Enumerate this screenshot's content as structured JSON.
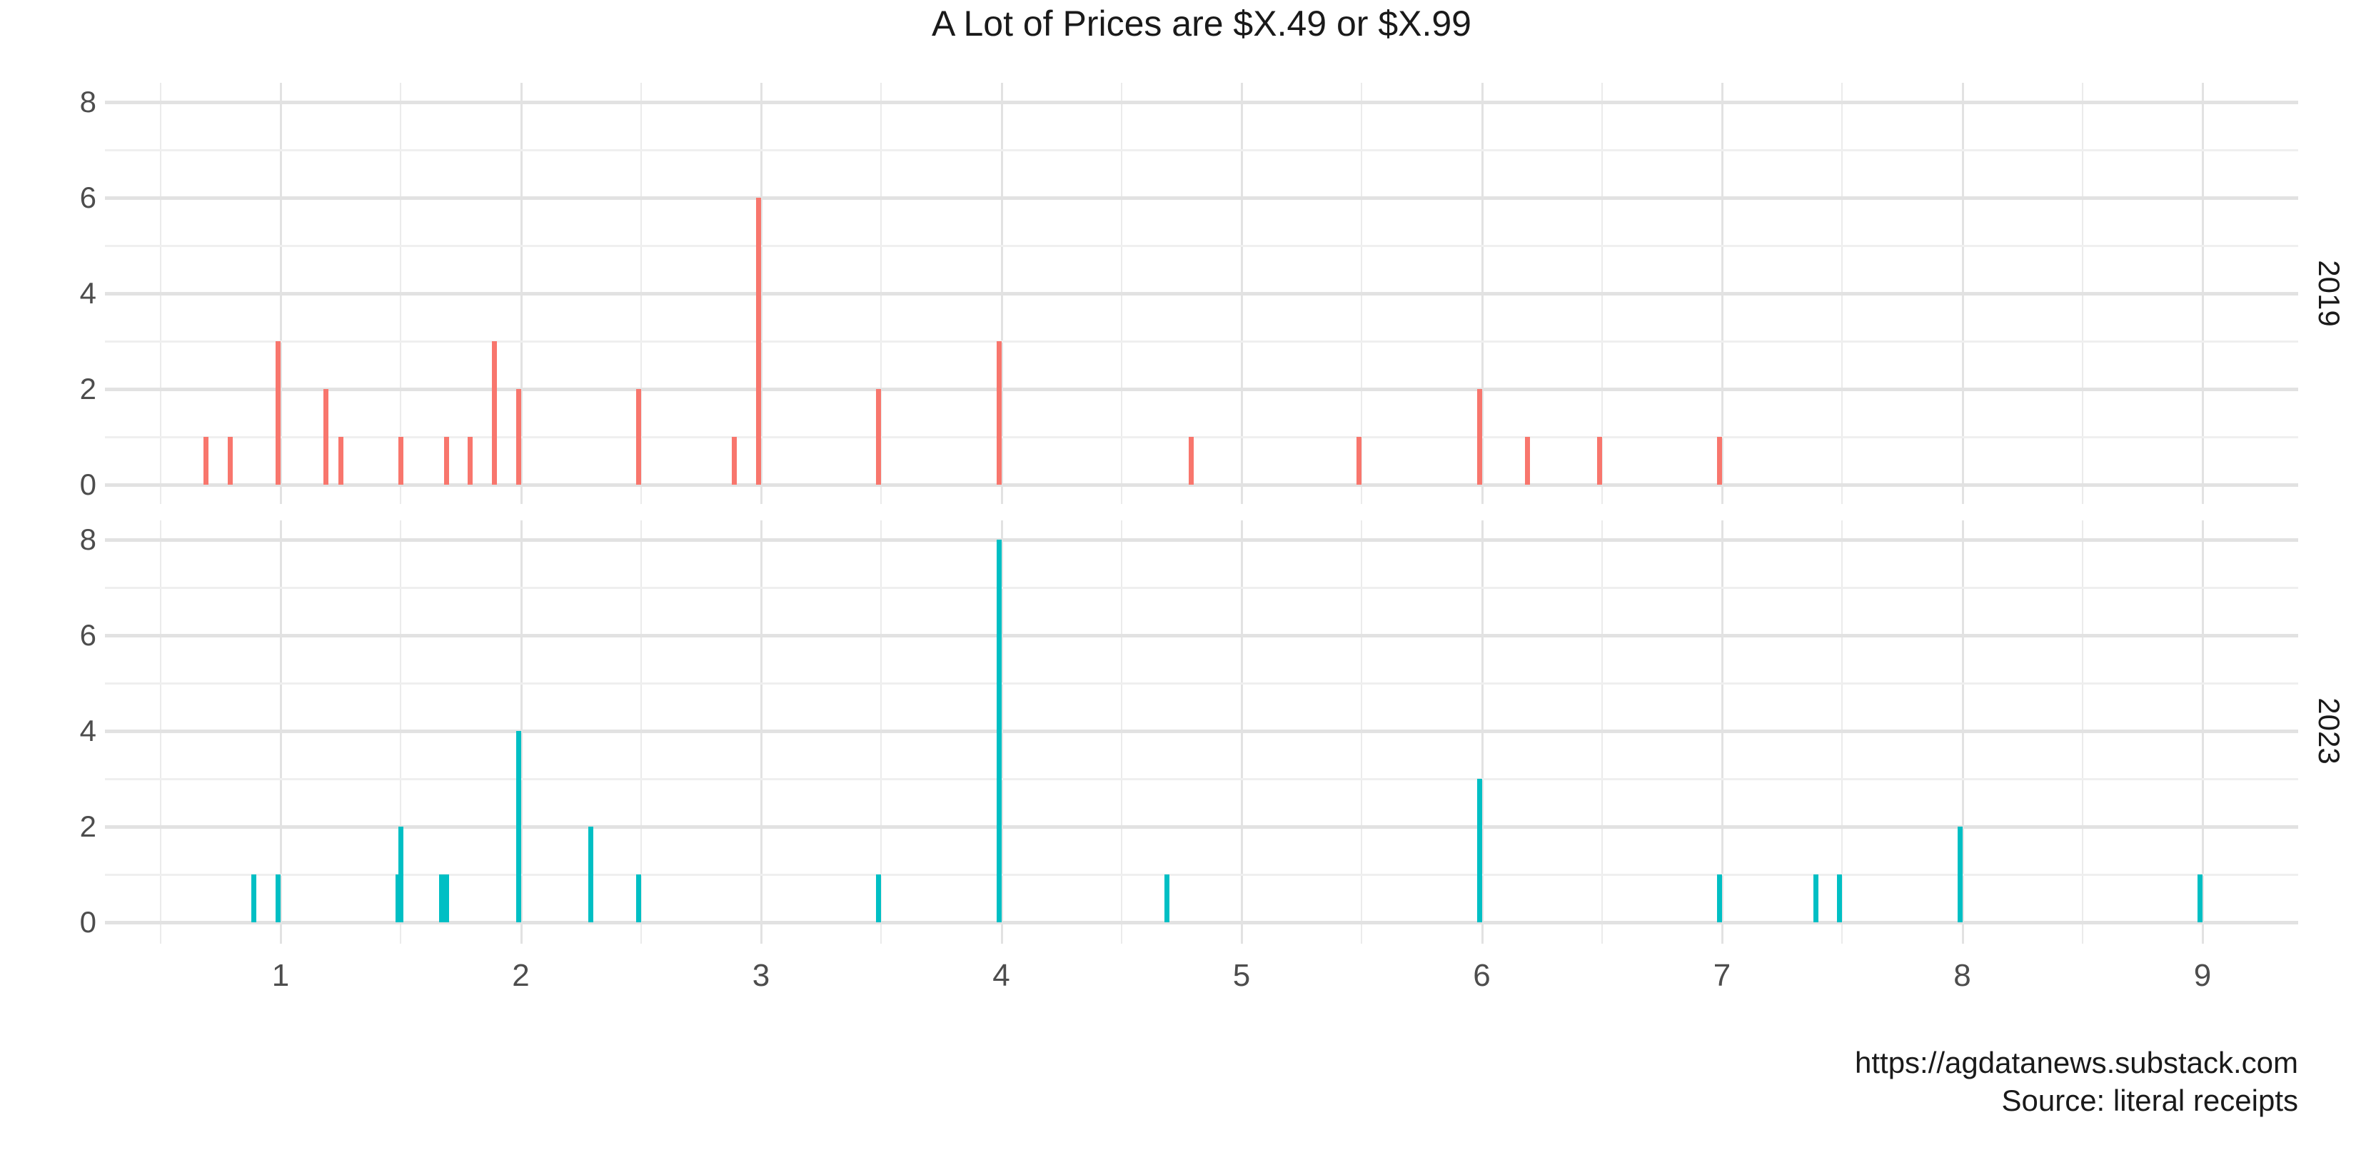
{
  "title": "A Lot of Prices are $X.49 or $X.99",
  "caption": {
    "line1": "https://agdatanews.substack.com",
    "line2": "Source: literal receipts"
  },
  "axes": {
    "x_tick_labels": [
      "1",
      "2",
      "3",
      "4",
      "5",
      "6",
      "7",
      "8",
      "9"
    ],
    "y_tick_labels": [
      "0",
      "2",
      "4",
      "6",
      "8"
    ]
  },
  "colors": {
    "facet_2019_bar": "#F8766D",
    "facet_2023_bar": "#00BFC4",
    "grid_major": "#e2e2e2",
    "grid_minor_h": "#efefef",
    "grid_minor_v": "#ebebeb",
    "axis_text": "#4d4d4d",
    "title_text": "#1a1a1a"
  },
  "chart_data": {
    "type": "bar",
    "title": "A Lot of Prices are $X.49 or $X.99",
    "xlabel": "",
    "ylabel": "",
    "x_ticks": [
      1,
      2,
      3,
      4,
      5,
      6,
      7,
      8,
      9
    ],
    "y_ticks": [
      0,
      2,
      4,
      6,
      8
    ],
    "xlim": [
      0.275,
      9.405
    ],
    "ylim": [
      0,
      8.4
    ],
    "grid": "major and minor, light gray, white background",
    "legend_position": "none",
    "facet_labels_right": [
      "2019",
      "2023"
    ],
    "facets": [
      {
        "label": "2019",
        "color": "#F8766D",
        "points": [
          {
            "price": 0.69,
            "count": 1
          },
          {
            "price": 0.79,
            "count": 1
          },
          {
            "price": 0.99,
            "count": 3
          },
          {
            "price": 1.19,
            "count": 2
          },
          {
            "price": 1.25,
            "count": 1
          },
          {
            "price": 1.5,
            "count": 1
          },
          {
            "price": 1.69,
            "count": 1
          },
          {
            "price": 1.79,
            "count": 1
          },
          {
            "price": 1.89,
            "count": 3
          },
          {
            "price": 1.99,
            "count": 2
          },
          {
            "price": 2.49,
            "count": 2
          },
          {
            "price": 2.89,
            "count": 1
          },
          {
            "price": 2.99,
            "count": 6
          },
          {
            "price": 3.49,
            "count": 2
          },
          {
            "price": 3.99,
            "count": 3
          },
          {
            "price": 4.79,
            "count": 1
          },
          {
            "price": 5.49,
            "count": 1
          },
          {
            "price": 5.99,
            "count": 2
          },
          {
            "price": 6.19,
            "count": 1
          },
          {
            "price": 6.49,
            "count": 1
          },
          {
            "price": 6.99,
            "count": 1
          }
        ]
      },
      {
        "label": "2023",
        "color": "#00BFC4",
        "points": [
          {
            "price": 0.89,
            "count": 1
          },
          {
            "price": 0.99,
            "count": 1
          },
          {
            "price": 1.49,
            "count": 1
          },
          {
            "price": 1.5,
            "count": 2
          },
          {
            "price": 1.67,
            "count": 1
          },
          {
            "price": 1.69,
            "count": 1
          },
          {
            "price": 1.99,
            "count": 4
          },
          {
            "price": 2.29,
            "count": 2
          },
          {
            "price": 2.49,
            "count": 1
          },
          {
            "price": 3.49,
            "count": 1
          },
          {
            "price": 3.99,
            "count": 8
          },
          {
            "price": 4.69,
            "count": 1
          },
          {
            "price": 5.99,
            "count": 3
          },
          {
            "price": 6.99,
            "count": 1
          },
          {
            "price": 7.39,
            "count": 1
          },
          {
            "price": 7.49,
            "count": 1
          },
          {
            "price": 7.99,
            "count": 2
          },
          {
            "price": 8.99,
            "count": 1
          }
        ]
      }
    ]
  }
}
